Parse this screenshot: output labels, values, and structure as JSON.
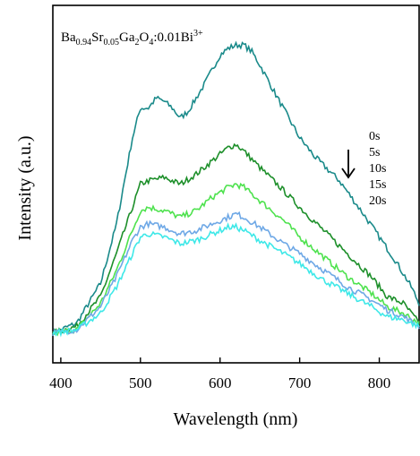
{
  "chart_data": {
    "type": "line",
    "xlabel": "Wavelength (nm)",
    "ylabel": "Intensity (a.u.)",
    "xlim": [
      390,
      850
    ],
    "ylim": [
      0,
      1.08
    ],
    "x_ticks": [
      400,
      500,
      600,
      700,
      800
    ],
    "grid": false,
    "annotation": {
      "parts": [
        {
          "t": "Ba",
          "s": "n"
        },
        {
          "t": "0.94",
          "s": "sub"
        },
        {
          "t": "Sr",
          "s": "n"
        },
        {
          "t": "0.05",
          "s": "sub"
        },
        {
          "t": "Ga",
          "s": "n"
        },
        {
          "t": "2",
          "s": "sub"
        },
        {
          "t": "O",
          "s": "n"
        },
        {
          "t": "4",
          "s": "sub"
        },
        {
          "t": ":0.01Bi",
          "s": "n"
        },
        {
          "t": "3+",
          "s": "sup"
        }
      ]
    },
    "legend": {
      "position": "top-right",
      "arrow": "down",
      "labels": [
        "0s",
        "5s",
        "10s",
        "15s",
        "20s"
      ]
    },
    "series": [
      {
        "name": "0s",
        "color": "#1a8a8a",
        "x": [
          390,
          420,
          450,
          470,
          490,
          500,
          510,
          520,
          530,
          540,
          550,
          560,
          580,
          600,
          610,
          620,
          630,
          640,
          650,
          670,
          700,
          720,
          750,
          780,
          800,
          820,
          840,
          850
        ],
        "y": [
          0.09,
          0.12,
          0.24,
          0.42,
          0.68,
          0.77,
          0.77,
          0.8,
          0.79,
          0.77,
          0.74,
          0.76,
          0.84,
          0.93,
          0.95,
          0.96,
          0.96,
          0.94,
          0.9,
          0.81,
          0.68,
          0.62,
          0.55,
          0.45,
          0.38,
          0.31,
          0.23,
          0.18
        ]
      },
      {
        "name": "5s",
        "color": "#1d8f2a",
        "x": [
          390,
          420,
          450,
          470,
          490,
          500,
          510,
          530,
          550,
          570,
          590,
          610,
          620,
          630,
          650,
          680,
          700,
          730,
          760,
          790,
          810,
          830,
          850
        ],
        "y": [
          0.09,
          0.11,
          0.2,
          0.33,
          0.47,
          0.54,
          0.55,
          0.56,
          0.54,
          0.57,
          0.61,
          0.65,
          0.66,
          0.64,
          0.59,
          0.52,
          0.47,
          0.4,
          0.33,
          0.26,
          0.2,
          0.18,
          0.12
        ]
      },
      {
        "name": "10s",
        "color": "#4ee24e",
        "x": [
          390,
          420,
          450,
          470,
          490,
          500,
          510,
          530,
          550,
          570,
          590,
          610,
          620,
          630,
          650,
          680,
          700,
          730,
          760,
          790,
          810,
          830,
          850
        ],
        "y": [
          0.09,
          0.1,
          0.18,
          0.28,
          0.4,
          0.46,
          0.47,
          0.46,
          0.44,
          0.46,
          0.5,
          0.53,
          0.54,
          0.53,
          0.49,
          0.43,
          0.38,
          0.32,
          0.26,
          0.21,
          0.17,
          0.15,
          0.12
        ]
      },
      {
        "name": "15s",
        "color": "#6ea8e6",
        "x": [
          390,
          420,
          450,
          470,
          490,
          500,
          510,
          530,
          550,
          570,
          590,
          610,
          620,
          630,
          650,
          680,
          700,
          730,
          760,
          790,
          810,
          830,
          850
        ],
        "y": [
          0.09,
          0.1,
          0.17,
          0.26,
          0.37,
          0.41,
          0.42,
          0.41,
          0.39,
          0.4,
          0.42,
          0.44,
          0.45,
          0.44,
          0.41,
          0.36,
          0.33,
          0.28,
          0.23,
          0.19,
          0.16,
          0.14,
          0.11
        ]
      },
      {
        "name": "20s",
        "color": "#3ee8e8",
        "x": [
          390,
          420,
          450,
          470,
          490,
          500,
          510,
          530,
          550,
          570,
          590,
          610,
          620,
          630,
          650,
          680,
          700,
          730,
          760,
          790,
          810,
          830,
          850
        ],
        "y": [
          0.09,
          0.1,
          0.15,
          0.23,
          0.33,
          0.38,
          0.39,
          0.38,
          0.36,
          0.37,
          0.39,
          0.41,
          0.41,
          0.4,
          0.37,
          0.33,
          0.3,
          0.25,
          0.21,
          0.17,
          0.14,
          0.13,
          0.11
        ]
      }
    ]
  }
}
